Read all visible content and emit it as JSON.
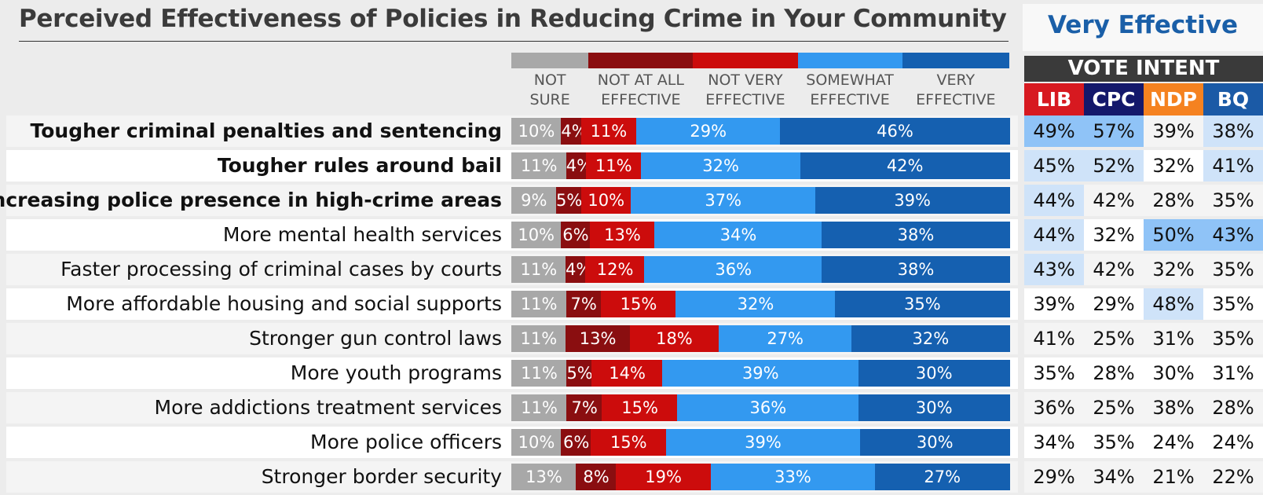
{
  "chart_data": {
    "type": "bar",
    "stacked": true,
    "orientation": "horizontal",
    "title": "Perceived Effectiveness of Policies in Reducing Crime in Your Community",
    "categories": [
      "Tougher criminal penalties and sentencing",
      "Tougher rules around bail",
      "Increasing police presence in high-crime areas",
      "More mental health services",
      "Faster processing of criminal cases by courts",
      "More affordable housing and social supports",
      "Stronger gun control laws",
      "More youth programs",
      "More addictions treatment services",
      "More police officers",
      "Stronger border security"
    ],
    "bold_categories": [
      0,
      1,
      2
    ],
    "series": [
      {
        "name": "NOT\nSURE",
        "color": "#a8a8a8",
        "values": [
          10,
          11,
          9,
          10,
          11,
          11,
          11,
          11,
          11,
          10,
          13
        ]
      },
      {
        "name": "NOT AT ALL\nEFFECTIVE",
        "color": "#8a0e10",
        "values": [
          4,
          4,
          5,
          6,
          4,
          7,
          13,
          5,
          7,
          6,
          8
        ]
      },
      {
        "name": "NOT VERY\nEFFECTIVE",
        "color": "#cc0c0c",
        "values": [
          11,
          11,
          10,
          13,
          12,
          15,
          18,
          14,
          15,
          15,
          19
        ]
      },
      {
        "name": "SOMEWHAT\nEFFECTIVE",
        "color": "#3399f0",
        "values": [
          29,
          32,
          37,
          34,
          36,
          32,
          27,
          39,
          36,
          39,
          33
        ]
      },
      {
        "name": "VERY\nEFFECTIVE",
        "color": "#1560b0",
        "values": [
          46,
          42,
          39,
          38,
          38,
          35,
          32,
          30,
          30,
          30,
          27
        ]
      }
    ],
    "value_suffix": "%",
    "side_table": {
      "title": "Very Effective",
      "header": "VOTE INTENT",
      "parties": [
        {
          "name": "LIB",
          "color": "#d71920"
        },
        {
          "name": "CPC",
          "color": "#14186b"
        },
        {
          "name": "NDP",
          "color": "#f58220"
        },
        {
          "name": "BQ",
          "color": "#1b5aa6"
        }
      ],
      "values": [
        [
          49,
          57,
          39,
          38
        ],
        [
          45,
          52,
          32,
          41
        ],
        [
          44,
          42,
          28,
          35
        ],
        [
          44,
          32,
          50,
          43
        ],
        [
          43,
          42,
          32,
          35
        ],
        [
          39,
          29,
          48,
          35
        ],
        [
          41,
          25,
          31,
          35
        ],
        [
          35,
          28,
          30,
          31
        ],
        [
          36,
          25,
          38,
          28
        ],
        [
          34,
          35,
          24,
          24
        ],
        [
          29,
          34,
          21,
          22
        ]
      ],
      "highlight_strong": "#8fc3f7",
      "highlight_light": "#cfe3f9"
    }
  }
}
